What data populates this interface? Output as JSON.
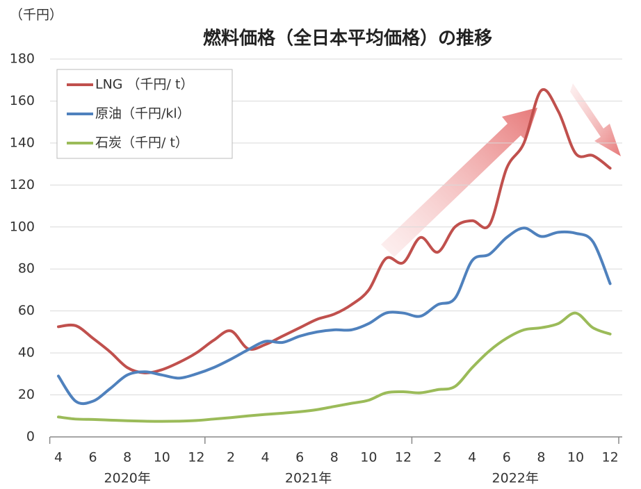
{
  "chart_data": {
    "type": "line",
    "title": "燃料価格（全日本平均価格）の推移",
    "y_label": "（千円）",
    "categories": [
      "4",
      null,
      "6",
      null,
      "8",
      null,
      "10",
      null,
      "12",
      null,
      "2",
      null,
      "4",
      null,
      "6",
      null,
      "8",
      null,
      "10",
      null,
      "12",
      null,
      "2",
      null,
      "4",
      null,
      "6",
      null,
      "8",
      null,
      "10",
      null,
      "12"
    ],
    "year_labels": [
      "2020年",
      "2021年",
      "2022年"
    ],
    "series": [
      {
        "name": "LNG （千円/ t）",
        "color": "#c0504d",
        "values": [
          52.5,
          53,
          47,
          40.5,
          33,
          30.5,
          32,
          35.5,
          40,
          46,
          50.5,
          42,
          44,
          48,
          52,
          56,
          58.5,
          63,
          70,
          85,
          83,
          95,
          88,
          100,
          103,
          101,
          128,
          140,
          165,
          155,
          135,
          134,
          128
        ]
      },
      {
        "name": "原油（千円/kl）",
        "color": "#4f81bd",
        "values": [
          29,
          17,
          17,
          23,
          29.5,
          31,
          29.5,
          28,
          30,
          33,
          37,
          41.5,
          45.5,
          45,
          48,
          50,
          51,
          51,
          54,
          59,
          59,
          57.5,
          63,
          66,
          84,
          87,
          95,
          99.5,
          95.5,
          97.5,
          97,
          93,
          73
        ]
      },
      {
        "name": "石炭（千円/ t）",
        "color": "#9bbb59",
        "values": [
          9.5,
          8.5,
          8.3,
          8,
          7.7,
          7.5,
          7.4,
          7.5,
          7.8,
          8.5,
          9.2,
          10,
          10.7,
          11.3,
          12,
          13,
          14.5,
          16,
          17.5,
          21,
          21.5,
          21,
          22.5,
          24,
          33,
          41,
          47,
          51,
          52,
          54,
          59,
          52,
          49
        ]
      }
    ],
    "ylim": [
      0,
      180
    ],
    "yticks": [
      0,
      20,
      40,
      60,
      80,
      100,
      120,
      140,
      160,
      180
    ],
    "grid": true,
    "legend": "top-left"
  }
}
